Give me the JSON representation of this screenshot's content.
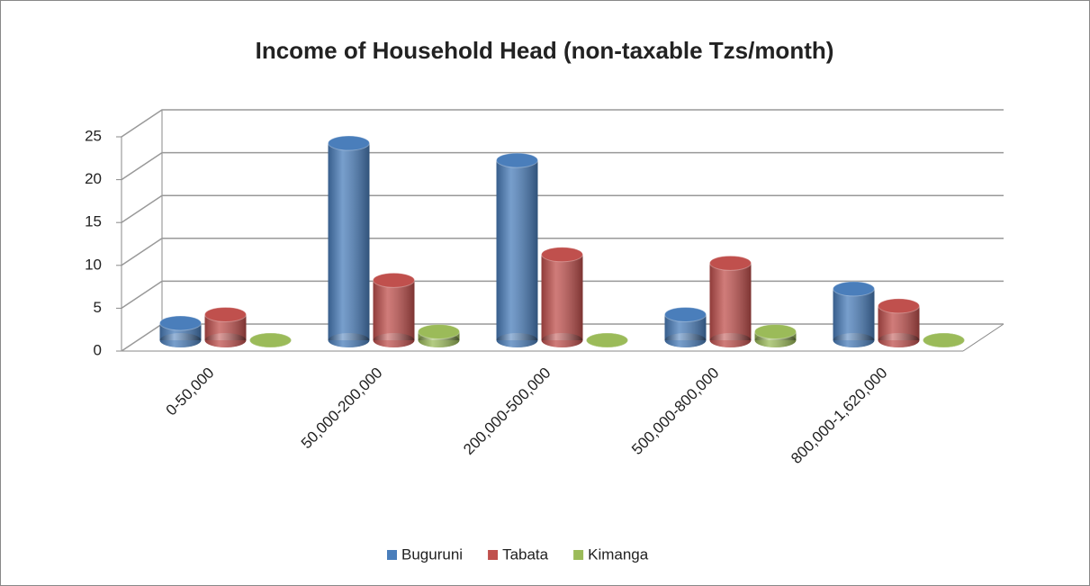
{
  "chart_data": {
    "type": "bar3d",
    "title": "Income of Household Head  (non-taxable Tzs/month)",
    "categories": [
      "0-50,000",
      "50,000-200,000",
      "200,000-500,000",
      "500,000-800,000",
      "800,000-1,620,000"
    ],
    "series": [
      {
        "name": "Buguruni",
        "color": "#4a7ebb",
        "values": [
          2,
          23,
          21,
          3,
          6
        ]
      },
      {
        "name": "Tabata",
        "color": "#c0504d",
        "values": [
          3,
          7,
          10,
          9,
          4
        ]
      },
      {
        "name": "Kimanga",
        "color": "#9bbb59",
        "values": [
          0,
          1,
          0,
          1,
          0
        ]
      }
    ],
    "ylim": [
      0,
      25
    ],
    "yticks": [
      0,
      5,
      10,
      15,
      20,
      25
    ],
    "grid": true,
    "legend": "bottom"
  }
}
